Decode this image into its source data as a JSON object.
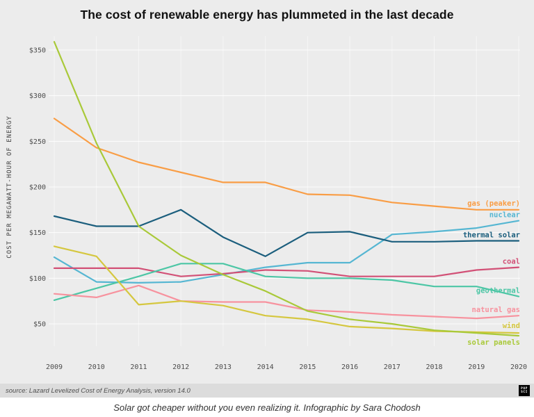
{
  "page": {
    "title": "The cost of renewable energy has plummeted in the last decade",
    "caption": "Solar got cheaper without you even realizing it. Infographic by Sara Chodosh"
  },
  "footer": {
    "source_text": "source: Lazard Levelized Cost of Energy Analysis, version 14.0",
    "logo_line1": "POP",
    "logo_line2": "SCI"
  },
  "colors": {
    "card_background": "#ececec",
    "footer_background": "#dcdcdc",
    "gridline": "#ffffff",
    "axis_text": "#4c4c4c",
    "axis_title_text": "#3e3e3e",
    "title_text": "#111111",
    "caption_text": "#333333"
  },
  "chart_data": {
    "type": "line",
    "title": "The cost of renewable energy has plummeted in the last decade",
    "xlabel": "",
    "ylabel": "COST PER MEGAWATT-HOUR OF ENERGY",
    "x": [
      2009,
      2010,
      2011,
      2012,
      2013,
      2014,
      2015,
      2016,
      2017,
      2018,
      2019,
      2020
    ],
    "ylim": [
      30,
      370
    ],
    "grid": true,
    "legend_position": "end-of-line labels",
    "y_ticks": [
      {
        "value": 50,
        "label": "$50"
      },
      {
        "value": 100,
        "label": "$100"
      },
      {
        "value": 150,
        "label": "$150"
      },
      {
        "value": 200,
        "label": "$200"
      },
      {
        "value": 250,
        "label": "$250"
      },
      {
        "value": 300,
        "label": "$300"
      },
      {
        "value": 350,
        "label": "$350"
      }
    ],
    "series": [
      {
        "name": "gas (peaker)",
        "color": "#f99d45",
        "label_dy": -6,
        "values": [
          275,
          243,
          227,
          216,
          205,
          205,
          192,
          191,
          183,
          179,
          175,
          175
        ]
      },
      {
        "name": "nuclear",
        "color": "#55b6d2",
        "label_dy": -5,
        "values": [
          123,
          96,
          95,
          96,
          104,
          112,
          117,
          117,
          148,
          151,
          155,
          163
        ]
      },
      {
        "name": "thermal solar",
        "color": "#1b5e7d",
        "label_dy": -5,
        "values": [
          168,
          157,
          157,
          175,
          145,
          124,
          150,
          151,
          140,
          140,
          141,
          141
        ]
      },
      {
        "name": "coal",
        "color": "#d25076",
        "label_dy": -5,
        "values": [
          111,
          111,
          111,
          102,
          105,
          109,
          108,
          102,
          102,
          102,
          109,
          112
        ]
      },
      {
        "name": "geothermal",
        "color": "#4cc6a5",
        "label_dy": -5,
        "values": [
          76,
          89,
          102,
          116,
          116,
          102,
          100,
          100,
          98,
          91,
          91,
          80
        ]
      },
      {
        "name": "natural gas",
        "color": "#f7929e",
        "label_dy": -5,
        "values": [
          83,
          79,
          92,
          75,
          74,
          74,
          65,
          63,
          60,
          58,
          56,
          59
        ]
      },
      {
        "name": "wind",
        "color": "#d5c73f",
        "label_dy": -7,
        "values": [
          135,
          124,
          71,
          75,
          70,
          59,
          55,
          47,
          45,
          42,
          41,
          40
        ]
      },
      {
        "name": "solar panels",
        "color": "#a9c939",
        "label_dy": 13,
        "values": [
          359,
          248,
          157,
          125,
          104,
          86,
          64,
          55,
          50,
          43,
          40,
          37
        ]
      }
    ]
  }
}
